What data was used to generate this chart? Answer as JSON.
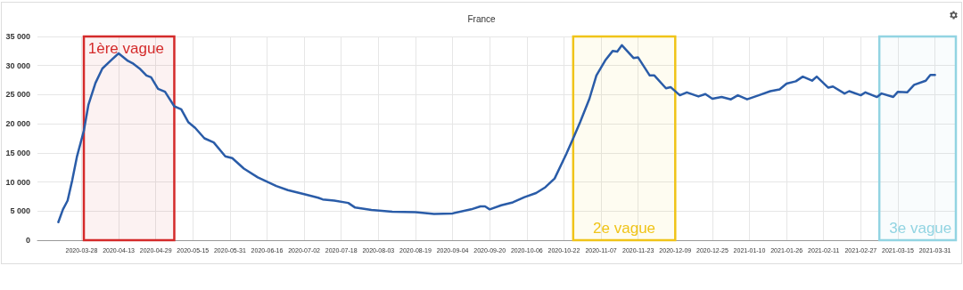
{
  "chart_data": {
    "type": "line",
    "title": "France",
    "x": [
      "2020-03-18",
      "2020-03-20",
      "2020-03-22",
      "2020-03-24",
      "2020-03-26",
      "2020-03-29",
      "2020-03-31",
      "2020-04-03",
      "2020-04-06",
      "2020-04-10",
      "2020-04-13",
      "2020-04-17",
      "2020-04-19",
      "2020-04-22",
      "2020-04-25",
      "2020-04-27",
      "2020-04-30",
      "2020-05-03",
      "2020-05-07",
      "2020-05-10",
      "2020-05-13",
      "2020-05-16",
      "2020-05-20",
      "2020-05-24",
      "2020-05-29",
      "2020-06-01",
      "2020-06-06",
      "2020-06-12",
      "2020-06-20",
      "2020-06-25",
      "2020-07-02",
      "2020-07-08",
      "2020-07-10",
      "2020-07-15",
      "2020-07-21",
      "2020-07-24",
      "2020-07-31",
      "2020-08-09",
      "2020-08-19",
      "2020-08-27",
      "2020-09-04",
      "2020-09-12",
      "2020-09-16",
      "2020-09-18",
      "2020-09-20",
      "2020-09-25",
      "2020-09-30",
      "2020-10-05",
      "2020-10-10",
      "2020-10-14",
      "2020-10-18",
      "2020-10-23",
      "2020-10-26",
      "2020-10-29",
      "2020-11-02",
      "2020-11-05",
      "2020-11-09",
      "2020-11-12",
      "2020-11-14",
      "2020-11-16",
      "2020-11-21",
      "2020-11-23",
      "2020-11-28",
      "2020-11-30",
      "2020-12-05",
      "2020-12-07",
      "2020-12-11",
      "2020-12-14",
      "2020-12-19",
      "2020-12-22",
      "2020-12-25",
      "2020-12-29",
      "2021-01-02",
      "2021-01-05",
      "2021-01-09",
      "2021-01-14",
      "2021-01-19",
      "2021-01-23",
      "2021-01-26",
      "2021-01-30",
      "2021-02-02",
      "2021-02-06",
      "2021-02-08",
      "2021-02-13",
      "2021-02-15",
      "2021-02-20",
      "2021-02-22",
      "2021-02-27",
      "2021-03-01",
      "2021-03-06",
      "2021-03-08",
      "2021-03-13",
      "2021-03-15",
      "2021-03-19",
      "2021-03-22",
      "2021-03-27",
      "2021-03-29",
      "2021-03-31"
    ],
    "series": [
      {
        "color": "#2a5ca8",
        "values": [
          3100,
          5300,
          6800,
          10300,
          14300,
          18800,
          23300,
          27000,
          29500,
          31000,
          32100,
          30800,
          30400,
          29500,
          28300,
          28000,
          26000,
          25500,
          23000,
          22500,
          20300,
          19300,
          17500,
          16800,
          14400,
          14100,
          12300,
          10800,
          9300,
          8600,
          7900,
          7300,
          7000,
          6800,
          6400,
          5600,
          5200,
          4900,
          4800,
          4500,
          4600,
          5300,
          5800,
          5800,
          5300,
          6000,
          6500,
          7400,
          8100,
          9100,
          10600,
          14800,
          17500,
          20300,
          24300,
          28300,
          31000,
          32500,
          32400,
          33500,
          31300,
          31400,
          28300,
          28300,
          26100,
          26300,
          24900,
          25400,
          24700,
          25100,
          24300,
          24600,
          24200,
          24900,
          24200,
          24900,
          25600,
          25900,
          26900,
          27300,
          28100,
          27400,
          28100,
          26200,
          26400,
          25200,
          25600,
          24900,
          25400,
          24600,
          25200,
          24600,
          25500,
          25400,
          26700,
          27400,
          28400,
          28400
        ]
      }
    ],
    "xlim": [
      "2020-03-09",
      "2021-04-09"
    ],
    "xticks": [
      "2020-03-28",
      "2020-04-13",
      "2020-04-29",
      "2020-05-15",
      "2020-05-31",
      "2020-06-16",
      "2020-07-02",
      "2020-07-18",
      "2020-08-03",
      "2020-08-19",
      "2020-09-04",
      "2020-09-20",
      "2020-10-06",
      "2020-10-22",
      "2020-11-07",
      "2020-11-23",
      "2020-12-09",
      "2020-12-25",
      "2021-01-10",
      "2021-01-26",
      "2021-02-11",
      "2021-02-27",
      "2021-03-15",
      "2021-03-31"
    ],
    "ylim": [
      0,
      35000
    ],
    "yticks": [
      0,
      {
        "value": 5000,
        "label": "5 000"
      },
      {
        "value": 10000,
        "label": "10 000"
      },
      {
        "value": 15000,
        "label": "15 000"
      },
      {
        "value": 20000,
        "label": "20 000"
      },
      {
        "value": 25000,
        "label": "25 000"
      },
      {
        "value": 30000,
        "label": "30 000"
      },
      {
        "value": 35000,
        "label": "35 000"
      }
    ],
    "bands": [
      {
        "axis": "x",
        "from": "2020-03-29",
        "to": "2020-05-07",
        "label": "1ère vague",
        "color": "#d42a2a"
      },
      {
        "axis": "x",
        "from": "2020-10-26",
        "to": "2020-12-09",
        "label": "2e vague",
        "color": "#f0c419"
      },
      {
        "axis": "x",
        "from": "2021-03-07",
        "to": "2021-04-09",
        "label": "3e vague",
        "color": "#92d4e2"
      }
    ],
    "grid": true,
    "marker": "none",
    "line_style": "solid"
  }
}
